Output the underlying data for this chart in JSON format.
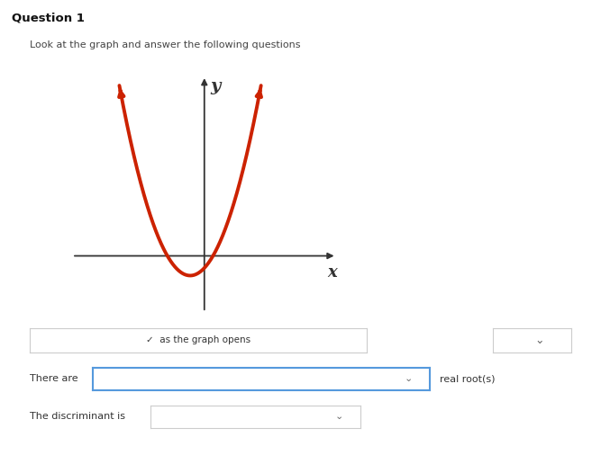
{
  "title": "Question 1",
  "subtitle": "Look at the graph and answer the following questions",
  "bg_color": "#ffffff",
  "curve_color": "#cc2200",
  "curve_linewidth": 2.8,
  "axis_color": "#333333",
  "axis_linewidth": 1.3,
  "x_label": "x",
  "y_label": "y",
  "xlim": [
    -2.8,
    2.8
  ],
  "ylim": [
    -1.0,
    3.2
  ],
  "parabola_vertex_x": -0.3,
  "parabola_vertex_y": -0.35,
  "parabola_a": 1.5,
  "label1_text": "✓  as the graph opens",
  "label2_text": "There are",
  "label3_text": "real root(s)",
  "label4_text": "The discriminant is",
  "dropdown_border": "#cccccc",
  "dropdown_border_blue": "#5599dd",
  "text_color": "#333333",
  "font_size": 8.5
}
